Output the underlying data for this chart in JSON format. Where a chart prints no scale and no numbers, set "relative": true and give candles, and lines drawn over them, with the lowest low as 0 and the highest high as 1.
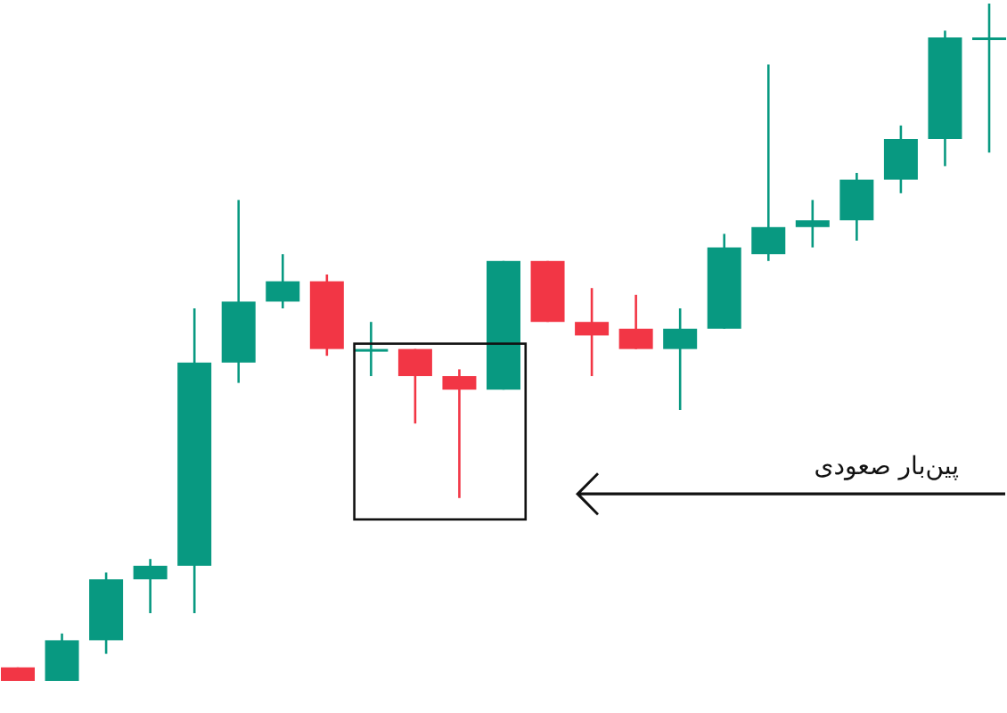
{
  "chart_data": {
    "type": "candlestick",
    "relative": true,
    "categories": [
      null,
      null,
      null,
      null,
      null,
      null,
      null,
      null,
      null,
      null,
      null,
      null,
      null,
      null,
      null,
      null,
      null,
      null,
      null,
      null,
      null,
      null,
      null
    ],
    "ohlc": [
      [
        0.02,
        0.02,
        0,
        0
      ],
      [
        0,
        0.07,
        0,
        0.06
      ],
      [
        0.06,
        0.16,
        0.04,
        0.15
      ],
      [
        0.15,
        0.18,
        0.1,
        0.17
      ],
      [
        0.17,
        0.55,
        0.1,
        0.47
      ],
      [
        0.47,
        0.71,
        0.44,
        0.56
      ],
      [
        0.56,
        0.63,
        0.55,
        0.59
      ],
      [
        0.59,
        0.6,
        0.48,
        0.49
      ],
      [
        0.49,
        0.53,
        0.45,
        0.49
      ],
      [
        0.49,
        0.49,
        0.38,
        0.45
      ],
      [
        0.45,
        0.46,
        0.27,
        0.43
      ],
      [
        0.43,
        0.62,
        0.43,
        0.62
      ],
      [
        0.62,
        0.62,
        0.53,
        0.53
      ],
      [
        0.53,
        0.58,
        0.45,
        0.51
      ],
      [
        0.52,
        0.57,
        0.49,
        0.49
      ],
      [
        0.49,
        0.55,
        0.4,
        0.52
      ],
      [
        0.52,
        0.66,
        0.52,
        0.64
      ],
      [
        0.63,
        0.91,
        0.62,
        0.67
      ],
      [
        0.67,
        0.71,
        0.64,
        0.68
      ],
      [
        0.68,
        0.75,
        0.65,
        0.74
      ],
      [
        0.74,
        0.82,
        0.72,
        0.8
      ],
      [
        0.8,
        0.96,
        0.76,
        0.95
      ],
      [
        0.95,
        1,
        0.78,
        0.95
      ]
    ],
    "colors": [
      "#f23645",
      "#089981",
      "#089981",
      "#089981",
      "#089981",
      "#089981",
      "#089981",
      "#f23645",
      "#089981",
      "#f23645",
      "#f23645",
      "#089981",
      "#f23645",
      "#f23645",
      "#f23645",
      "#089981",
      "#089981",
      "#089981",
      "#089981",
      "#089981",
      "#089981",
      "#089981",
      "#089981"
    ],
    "annotations": [
      "پین‌بار صعودی"
    ]
  }
}
